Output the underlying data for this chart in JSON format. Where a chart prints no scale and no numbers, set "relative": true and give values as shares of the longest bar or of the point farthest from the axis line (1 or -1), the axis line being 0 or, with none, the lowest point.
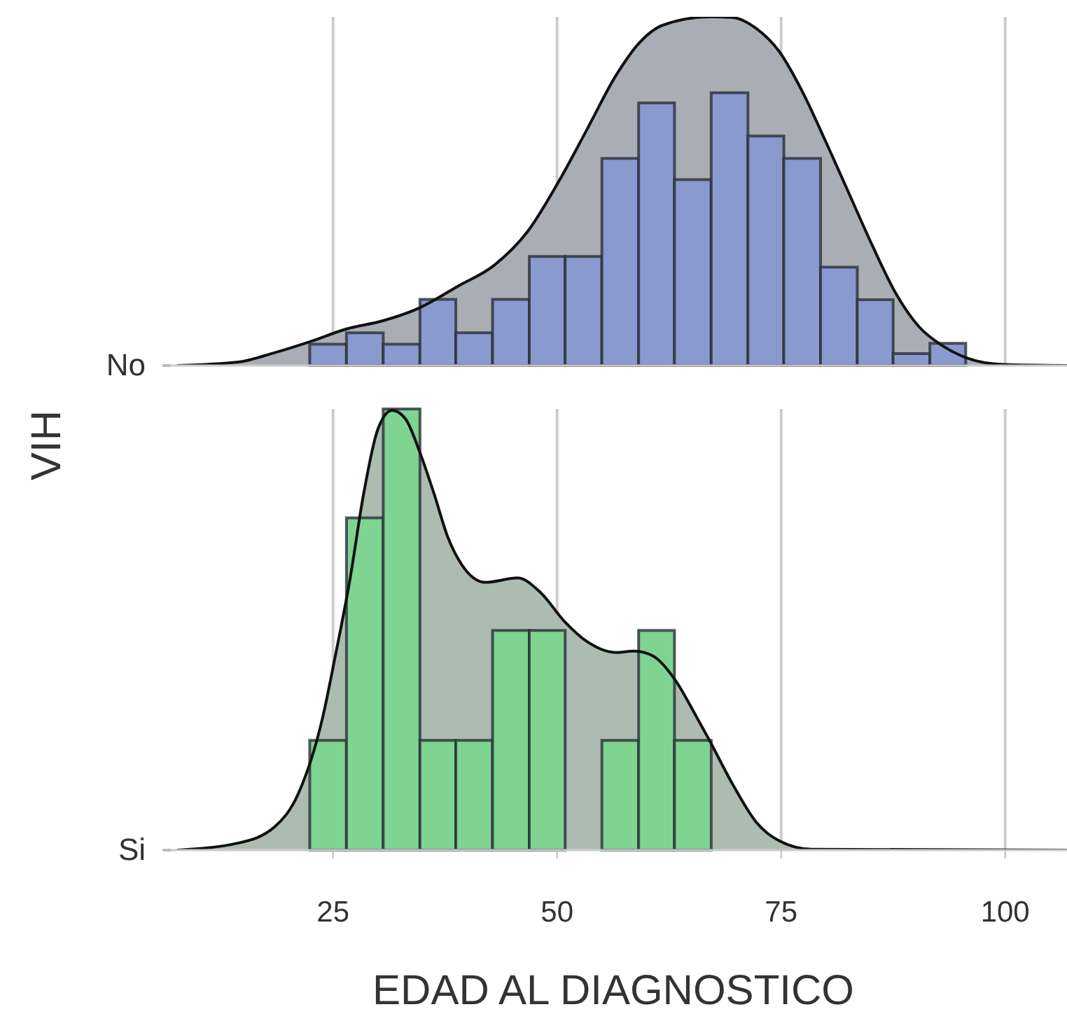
{
  "chart_data": [
    {
      "type": "histogram",
      "relative": true,
      "ylabel": "VIH",
      "xlim": [
        6.9,
        106.9
      ],
      "xticks": [
        25,
        50,
        75,
        100
      ],
      "grid": "x",
      "tick_labels": "y",
      "color": "#8a9acf",
      "bins": [
        22.4,
        26.5,
        30.6,
        34.7,
        38.7,
        42.8,
        46.9,
        50.9,
        55.0,
        59.1,
        63.1,
        67.2,
        71.3,
        75.3,
        79.4,
        83.5,
        87.5,
        91.6,
        95.6
      ],
      "values": [
        0.061,
        0.094,
        0.061,
        0.19,
        0.094,
        0.19,
        0.313,
        0.313,
        0.594,
        0.753,
        0.533,
        0.782,
        0.658,
        0.594,
        0.282,
        0.189,
        0.034,
        0.064
      ],
      "series": [
        {
          "type": "area",
          "name": "No",
          "color": "#a9adb4",
          "x": [
            7.6,
            14.4,
            18.5,
            22.5,
            26.5,
            30.5,
            34.7,
            38.9,
            43.0,
            46.7,
            50.3,
            53.4,
            56.6,
            59.2,
            61.8,
            67.0,
            69.6,
            72.2,
            74.8,
            77.4,
            80.0,
            82.6,
            85.2,
            87.8,
            90.4,
            93.0,
            95.6,
            99.8,
            106.9
          ],
          "values": [
            0,
            0.01,
            0.037,
            0.069,
            0.105,
            0.128,
            0.166,
            0.227,
            0.288,
            0.384,
            0.533,
            0.68,
            0.833,
            0.926,
            0.976,
            1.0,
            0.998,
            0.967,
            0.9,
            0.784,
            0.641,
            0.492,
            0.343,
            0.207,
            0.111,
            0.057,
            0.023,
            0.003,
            0
          ]
        }
      ]
    },
    {
      "type": "histogram",
      "relative": true,
      "xlabel": "EDAD AL DIAGNOSTICO",
      "xlim": [
        6.9,
        106.9
      ],
      "xticks": [
        25,
        50,
        75,
        100
      ],
      "grid": "x",
      "color": "#7fd492",
      "bins": [
        22.4,
        26.5,
        30.6,
        34.7,
        38.7,
        42.8,
        46.9,
        50.9,
        55.0,
        59.1,
        63.1,
        67.2
      ],
      "values": [
        0.249,
        0.753,
        1.0,
        0.249,
        0.249,
        0.498,
        0.498,
        0,
        0.249,
        0.498,
        0.249
      ],
      "series": [
        {
          "type": "area",
          "name": "Si",
          "color": "#adbcb1",
          "x": [
            7.6,
            14.4,
            18.5,
            21.1,
            23.8,
            25.3,
            26.9,
            28.4,
            30.0,
            31.6,
            33.1,
            34.7,
            36.3,
            37.8,
            39.4,
            42.0,
            45.6,
            48.2,
            50.8,
            53.4,
            56.6,
            58.6,
            60.7,
            63.3,
            65.4,
            67.0,
            69.6,
            72.2,
            74.8,
            78.4,
            106.9
          ],
          "values": [
            0,
            0.016,
            0.053,
            0.127,
            0.297,
            0.445,
            0.615,
            0.806,
            0.954,
            0.997,
            0.977,
            0.901,
            0.806,
            0.71,
            0.646,
            0.607,
            0.617,
            0.583,
            0.519,
            0.472,
            0.448,
            0.451,
            0.44,
            0.382,
            0.308,
            0.249,
            0.149,
            0.064,
            0.021,
            0.002,
            0
          ]
        }
      ]
    }
  ]
}
